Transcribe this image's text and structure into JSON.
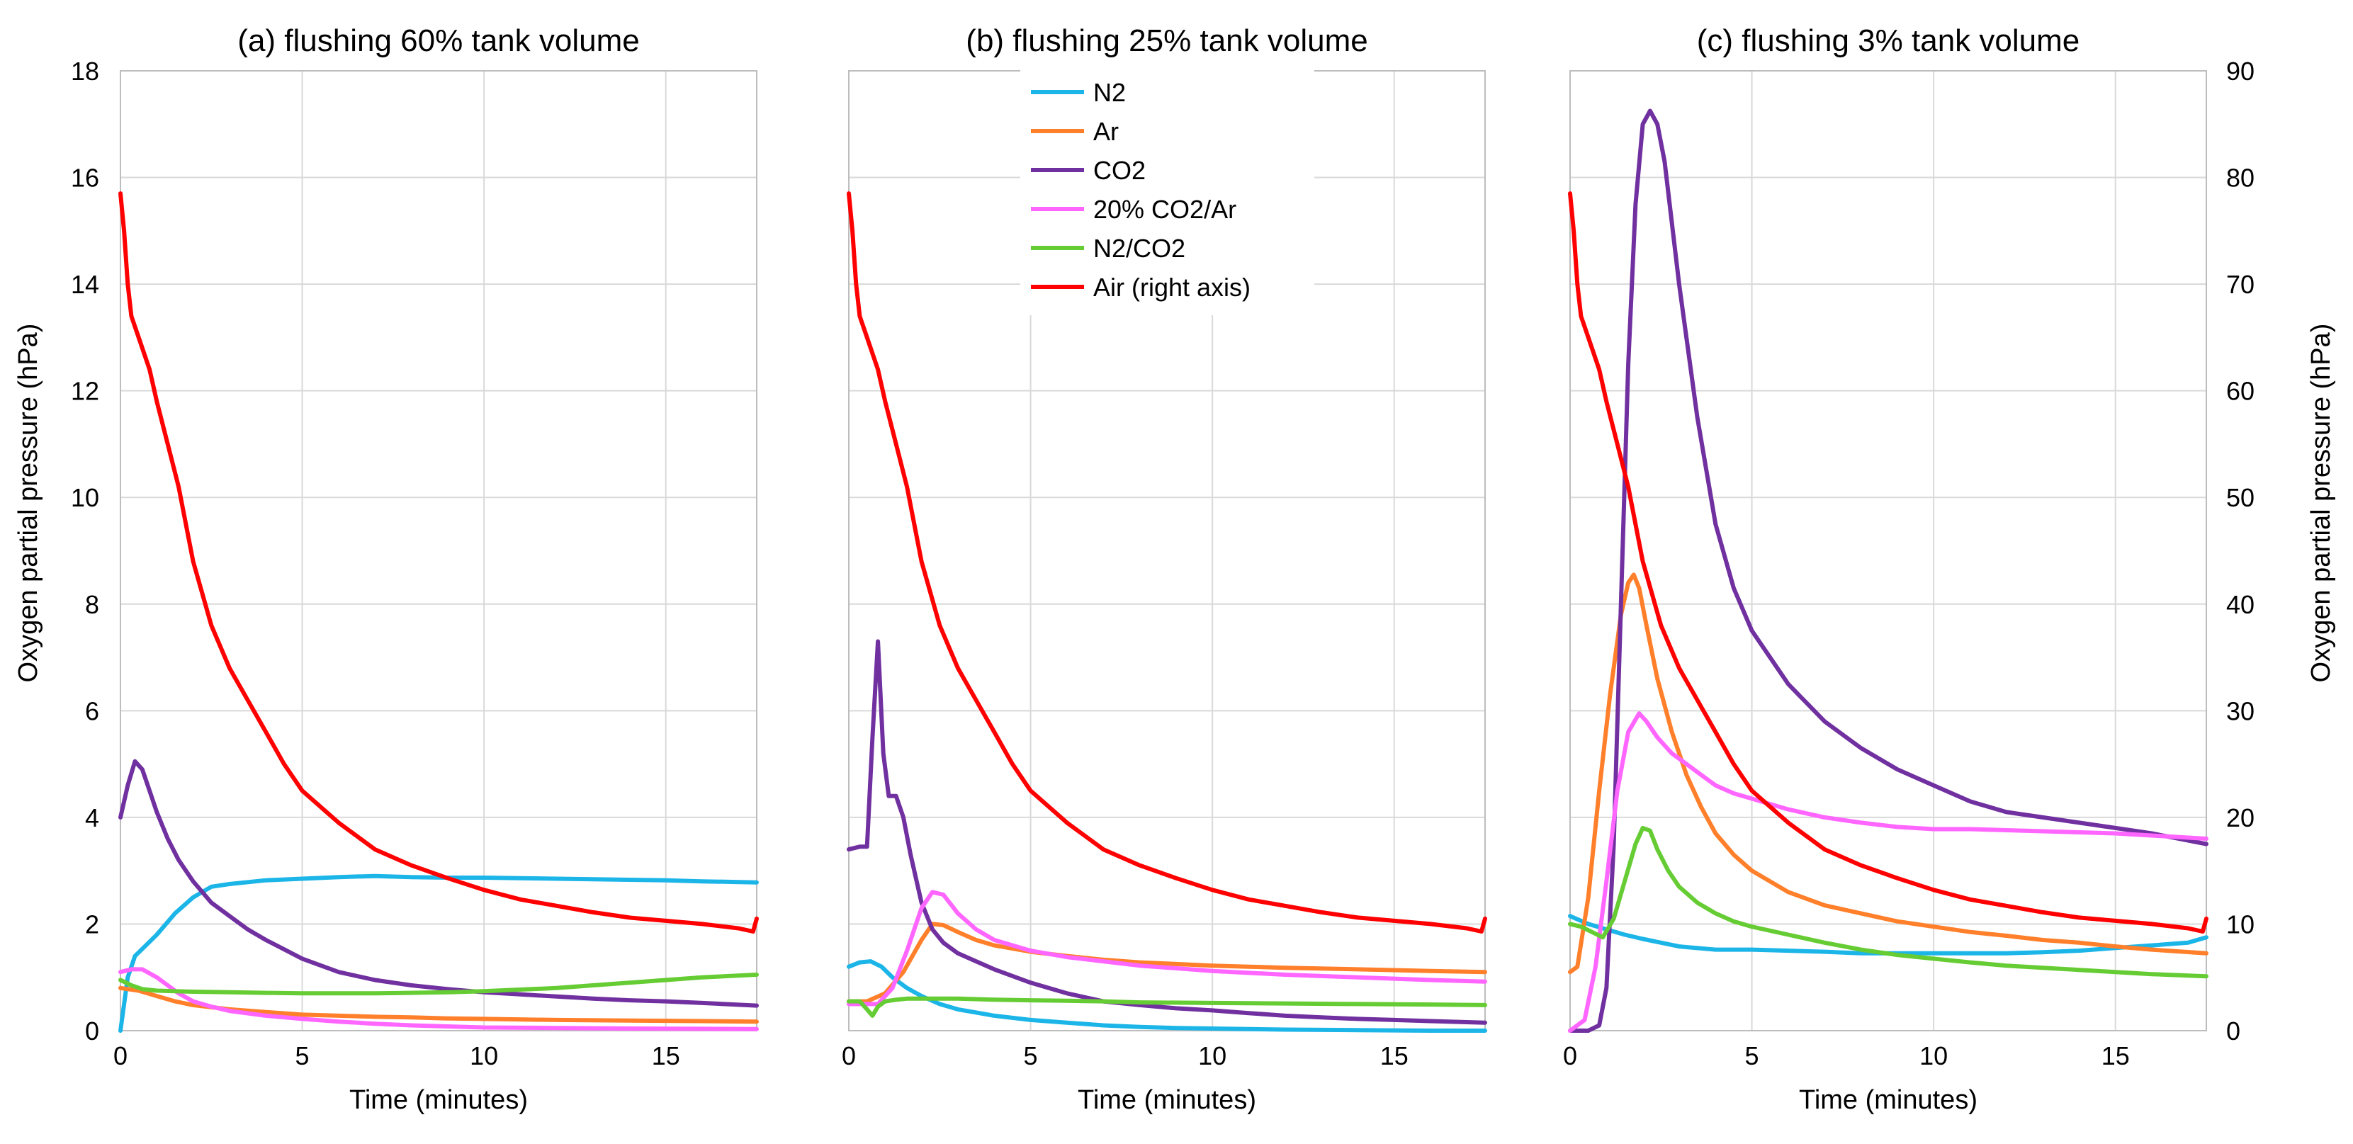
{
  "colors": {
    "N2": "#1cb5e8",
    "Ar": "#ff7f2a",
    "CO2": "#7030a0",
    "CO2Ar": "#ff66ff",
    "N2CO2": "#66cc33",
    "Air": "#ff0000"
  },
  "shared": {
    "xlabel": "Time (minutes)",
    "ylabel_left": "Oxygen partial pressure (hPa)",
    "ylabel_right": "Oxygen partial pressure  (hPa)",
    "xlim": [
      0,
      17.5
    ],
    "xticks": [
      0,
      5,
      10,
      15
    ],
    "ylim_left": [
      0,
      18
    ],
    "yticks_left": [
      0,
      2,
      4,
      6,
      8,
      10,
      12,
      14,
      16,
      18
    ],
    "ylim_right": [
      0,
      90
    ],
    "yticks_right": [
      0,
      10,
      20,
      30,
      40,
      50,
      60,
      70,
      80,
      90
    ],
    "legend": [
      "N2",
      "Ar",
      "CO2",
      "20% CO2/Ar",
      "N2/CO2",
      "Air (right axis)"
    ],
    "legend_placement": "top-right of panel (b)"
  },
  "chart_data": [
    {
      "type": "line",
      "title": "(a) flushing 60% tank volume",
      "series": [
        {
          "name": "N2",
          "color_key": "N2",
          "axis": "left",
          "x": [
            0,
            0.2,
            0.4,
            0.7,
            1,
            1.5,
            2,
            2.5,
            3,
            4,
            5,
            6,
            7,
            8,
            9,
            10,
            11,
            12,
            13,
            14,
            15,
            16,
            17.5
          ],
          "y": [
            0,
            1,
            1.4,
            1.6,
            1.8,
            2.2,
            2.5,
            2.7,
            2.75,
            2.82,
            2.85,
            2.88,
            2.9,
            2.88,
            2.87,
            2.87,
            2.86,
            2.85,
            2.84,
            2.83,
            2.82,
            2.8,
            2.78
          ]
        },
        {
          "name": "Ar",
          "color_key": "Ar",
          "axis": "left",
          "x": [
            0,
            0.5,
            1,
            1.5,
            2,
            3,
            4,
            5,
            6,
            7,
            8,
            9,
            10,
            12,
            14,
            16,
            17.5
          ],
          "y": [
            0.8,
            0.75,
            0.65,
            0.55,
            0.48,
            0.4,
            0.35,
            0.3,
            0.28,
            0.26,
            0.25,
            0.23,
            0.22,
            0.2,
            0.19,
            0.18,
            0.17
          ]
        },
        {
          "name": "CO2",
          "color_key": "CO2",
          "axis": "left",
          "x": [
            0,
            0.2,
            0.4,
            0.6,
            0.8,
            1,
            1.3,
            1.6,
            2,
            2.5,
            3,
            3.5,
            4,
            5,
            6,
            7,
            8,
            9,
            10,
            11,
            12,
            13,
            14,
            15,
            16,
            17.5
          ],
          "y": [
            4.0,
            4.6,
            5.05,
            4.9,
            4.5,
            4.1,
            3.6,
            3.2,
            2.8,
            2.4,
            2.15,
            1.9,
            1.7,
            1.35,
            1.1,
            0.95,
            0.85,
            0.78,
            0.72,
            0.68,
            0.64,
            0.6,
            0.57,
            0.55,
            0.52,
            0.47
          ]
        },
        {
          "name": "20% CO2/Ar",
          "color_key": "CO2Ar",
          "axis": "left",
          "x": [
            0,
            0.3,
            0.6,
            1,
            1.3,
            1.6,
            2,
            2.5,
            3,
            4,
            5,
            6,
            7,
            8,
            9,
            10,
            12,
            14,
            17.5
          ],
          "y": [
            1.1,
            1.15,
            1.15,
            1.0,
            0.85,
            0.7,
            0.55,
            0.45,
            0.37,
            0.28,
            0.22,
            0.17,
            0.13,
            0.1,
            0.08,
            0.06,
            0.05,
            0.04,
            0.03
          ]
        },
        {
          "name": "N2/CO2",
          "color_key": "N2CO2",
          "axis": "left",
          "x": [
            0,
            0.3,
            0.6,
            1,
            2,
            3,
            4,
            5,
            6,
            7,
            8,
            9,
            10,
            11,
            12,
            13,
            14,
            15,
            16,
            17.5
          ],
          "y": [
            0.95,
            0.85,
            0.78,
            0.75,
            0.73,
            0.72,
            0.71,
            0.7,
            0.7,
            0.7,
            0.71,
            0.72,
            0.74,
            0.77,
            0.8,
            0.85,
            0.9,
            0.95,
            1.0,
            1.05
          ]
        },
        {
          "name": "Air (right axis)",
          "color_key": "Air",
          "axis": "right",
          "x": [
            0,
            0.1,
            0.2,
            0.3,
            0.5,
            0.8,
            1,
            1.3,
            1.6,
            2,
            2.5,
            3,
            3.5,
            4,
            4.5,
            5,
            6,
            7,
            8,
            9,
            10,
            11,
            12,
            13,
            14,
            15,
            16,
            17,
            17.4,
            17.5
          ],
          "y": [
            78.5,
            75,
            70,
            67,
            65,
            62,
            59,
            55,
            51,
            44,
            38,
            34,
            31,
            28,
            25,
            22.5,
            19.5,
            17,
            15.5,
            14.3,
            13.2,
            12.3,
            11.7,
            11.1,
            10.6,
            10.3,
            10,
            9.6,
            9.3,
            10.5
          ]
        }
      ]
    },
    {
      "type": "line",
      "title": "(b) flushing 25% tank volume",
      "series": [
        {
          "name": "N2",
          "color_key": "N2",
          "axis": "left",
          "x": [
            0,
            0.3,
            0.6,
            0.9,
            1.2,
            1.6,
            2,
            2.5,
            3,
            4,
            5,
            6,
            7,
            8,
            9,
            10,
            11,
            12,
            14,
            16,
            17.5
          ],
          "y": [
            1.2,
            1.28,
            1.3,
            1.2,
            1.0,
            0.8,
            0.65,
            0.5,
            0.4,
            0.28,
            0.2,
            0.15,
            0.1,
            0.07,
            0.05,
            0.04,
            0.03,
            0.02,
            0.01,
            0.0,
            0.0
          ]
        },
        {
          "name": "Ar",
          "color_key": "Ar",
          "axis": "left",
          "x": [
            0,
            0.5,
            1,
            1.5,
            2,
            2.3,
            2.6,
            3,
            3.5,
            4,
            5,
            6,
            7,
            8,
            9,
            10,
            11,
            12,
            14,
            16,
            17.5
          ],
          "y": [
            0.55,
            0.55,
            0.7,
            1.1,
            1.7,
            2.0,
            1.98,
            1.85,
            1.7,
            1.6,
            1.48,
            1.4,
            1.33,
            1.28,
            1.25,
            1.22,
            1.2,
            1.18,
            1.15,
            1.12,
            1.1
          ]
        },
        {
          "name": "CO2",
          "color_key": "CO2",
          "axis": "left",
          "x": [
            0,
            0.3,
            0.5,
            0.65,
            0.8,
            0.95,
            1.1,
            1.3,
            1.5,
            1.7,
            2,
            2.3,
            2.6,
            3,
            3.5,
            4,
            5,
            6,
            7,
            8,
            9,
            10,
            11,
            12,
            13,
            14,
            15,
            16,
            17,
            17.5
          ],
          "y": [
            3.4,
            3.45,
            3.45,
            5.5,
            7.3,
            5.2,
            4.4,
            4.4,
            4.0,
            3.3,
            2.4,
            1.9,
            1.65,
            1.45,
            1.3,
            1.15,
            0.9,
            0.7,
            0.55,
            0.48,
            0.42,
            0.38,
            0.33,
            0.28,
            0.25,
            0.22,
            0.2,
            0.18,
            0.16,
            0.15
          ]
        },
        {
          "name": "20% CO2/Ar",
          "color_key": "CO2Ar",
          "axis": "left",
          "x": [
            0,
            0.8,
            1.2,
            1.6,
            2,
            2.3,
            2.6,
            3,
            3.5,
            4,
            5,
            6,
            7,
            8,
            9,
            10,
            12,
            14,
            16,
            17.5
          ],
          "y": [
            0.5,
            0.5,
            0.8,
            1.5,
            2.3,
            2.6,
            2.55,
            2.2,
            1.9,
            1.7,
            1.5,
            1.38,
            1.3,
            1.22,
            1.17,
            1.12,
            1.05,
            1.0,
            0.95,
            0.92
          ]
        },
        {
          "name": "N2/CO2",
          "color_key": "N2CO2",
          "axis": "left",
          "x": [
            0,
            0.3,
            0.5,
            0.65,
            0.8,
            1,
            1.3,
            1.6,
            2,
            3,
            4,
            5,
            6,
            7,
            8,
            10,
            12,
            14,
            16,
            17.5
          ],
          "y": [
            0.55,
            0.55,
            0.4,
            0.28,
            0.45,
            0.55,
            0.58,
            0.6,
            0.6,
            0.6,
            0.58,
            0.57,
            0.56,
            0.55,
            0.53,
            0.52,
            0.51,
            0.5,
            0.49,
            0.48
          ]
        },
        {
          "name": "Air (right axis)",
          "color_key": "Air",
          "axis": "right",
          "x": [
            0,
            0.1,
            0.2,
            0.3,
            0.5,
            0.8,
            1,
            1.3,
            1.6,
            2,
            2.5,
            3,
            3.5,
            4,
            4.5,
            5,
            6,
            7,
            8,
            9,
            10,
            11,
            12,
            13,
            14,
            15,
            16,
            17,
            17.4,
            17.5
          ],
          "y": [
            78.5,
            75,
            70,
            67,
            65,
            62,
            59,
            55,
            51,
            44,
            38,
            34,
            31,
            28,
            25,
            22.5,
            19.5,
            17,
            15.5,
            14.3,
            13.2,
            12.3,
            11.7,
            11.1,
            10.6,
            10.3,
            10,
            9.6,
            9.3,
            10.5
          ]
        }
      ]
    },
    {
      "type": "line",
      "title": "(c) flushing 3% tank volume",
      "series": [
        {
          "name": "N2",
          "color_key": "N2",
          "axis": "left",
          "x": [
            0,
            0.5,
            1,
            1.5,
            2,
            2.5,
            3,
            4,
            5,
            6,
            7,
            8,
            9,
            10,
            11,
            12,
            13,
            14,
            15,
            16,
            17,
            17.5
          ],
          "y": [
            2.15,
            2.0,
            1.9,
            1.8,
            1.72,
            1.65,
            1.58,
            1.52,
            1.52,
            1.5,
            1.48,
            1.45,
            1.45,
            1.45,
            1.45,
            1.45,
            1.47,
            1.5,
            1.55,
            1.6,
            1.65,
            1.75
          ]
        },
        {
          "name": "Ar",
          "color_key": "Ar",
          "axis": "left",
          "x": [
            0,
            0.2,
            0.5,
            0.8,
            1.1,
            1.4,
            1.6,
            1.75,
            1.9,
            2.1,
            2.4,
            2.8,
            3.2,
            3.6,
            4,
            4.5,
            5,
            6,
            7,
            8,
            9,
            10,
            11,
            12,
            13,
            14,
            15,
            16,
            17.5
          ],
          "y": [
            1.1,
            1.2,
            2.5,
            4.5,
            6.3,
            7.8,
            8.4,
            8.55,
            8.3,
            7.6,
            6.6,
            5.6,
            4.8,
            4.2,
            3.7,
            3.3,
            3.0,
            2.6,
            2.35,
            2.2,
            2.05,
            1.95,
            1.85,
            1.78,
            1.7,
            1.65,
            1.58,
            1.52,
            1.45
          ]
        },
        {
          "name": "CO2",
          "color_key": "CO2",
          "axis": "left",
          "x": [
            0,
            0.5,
            0.8,
            1.0,
            1.2,
            1.4,
            1.6,
            1.8,
            2.0,
            2.2,
            2.4,
            2.6,
            3.0,
            3.5,
            4.0,
            4.5,
            5,
            6,
            7,
            8,
            9,
            10,
            11,
            12,
            13,
            14,
            15,
            16,
            17.5
          ],
          "y": [
            0,
            0,
            0.1,
            0.8,
            3.5,
            8.0,
            12.5,
            15.5,
            17.0,
            17.25,
            17.0,
            16.3,
            14.0,
            11.5,
            9.5,
            8.3,
            7.5,
            6.5,
            5.8,
            5.3,
            4.9,
            4.6,
            4.3,
            4.1,
            4.0,
            3.9,
            3.8,
            3.7,
            3.5
          ]
        },
        {
          "name": "20% CO2/Ar",
          "color_key": "CO2Ar",
          "axis": "left",
          "x": [
            0,
            0.4,
            0.7,
            1.0,
            1.3,
            1.6,
            1.9,
            2.1,
            2.4,
            2.8,
            3.2,
            3.6,
            4,
            4.5,
            5,
            6,
            7,
            8,
            9,
            10,
            11,
            12,
            13,
            14,
            15,
            16,
            17.5
          ],
          "y": [
            0,
            0.2,
            1.2,
            2.8,
            4.5,
            5.6,
            5.95,
            5.8,
            5.5,
            5.2,
            5.0,
            4.8,
            4.6,
            4.45,
            4.35,
            4.15,
            4.0,
            3.9,
            3.82,
            3.78,
            3.78,
            3.76,
            3.74,
            3.72,
            3.7,
            3.66,
            3.6
          ]
        },
        {
          "name": "N2/CO2",
          "color_key": "N2CO2",
          "axis": "left",
          "x": [
            0,
            0.3,
            0.6,
            0.9,
            1.2,
            1.5,
            1.8,
            2.0,
            2.2,
            2.4,
            2.7,
            3.0,
            3.5,
            4,
            4.5,
            5,
            6,
            7,
            8,
            9,
            10,
            11,
            12,
            13,
            14,
            15,
            16,
            17.5
          ],
          "y": [
            2.0,
            1.95,
            1.85,
            1.75,
            2.1,
            2.8,
            3.5,
            3.8,
            3.75,
            3.4,
            3.0,
            2.7,
            2.4,
            2.2,
            2.05,
            1.95,
            1.8,
            1.65,
            1.52,
            1.42,
            1.35,
            1.28,
            1.22,
            1.18,
            1.14,
            1.1,
            1.06,
            1.02
          ]
        },
        {
          "name": "Air (right axis)",
          "color_key": "Air",
          "axis": "right",
          "x": [
            0,
            0.1,
            0.2,
            0.3,
            0.5,
            0.8,
            1,
            1.3,
            1.6,
            2,
            2.5,
            3,
            3.5,
            4,
            4.5,
            5,
            6,
            7,
            8,
            9,
            10,
            11,
            12,
            13,
            14,
            15,
            16,
            17,
            17.4,
            17.5
          ],
          "y": [
            78.5,
            75,
            70,
            67,
            65,
            62,
            59,
            55,
            51,
            44,
            38,
            34,
            31,
            28,
            25,
            22.5,
            19.5,
            17,
            15.5,
            14.3,
            13.2,
            12.3,
            11.7,
            11.1,
            10.6,
            10.3,
            10,
            9.6,
            9.3,
            10.5
          ]
        }
      ]
    }
  ]
}
